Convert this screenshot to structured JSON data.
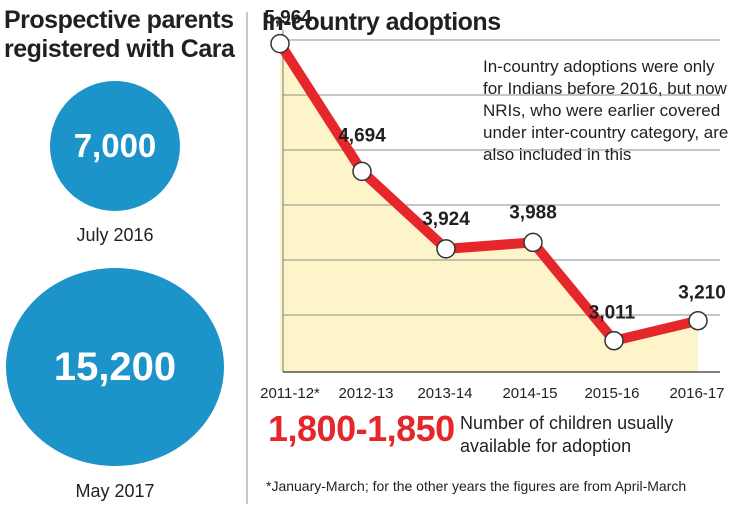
{
  "left_panel": {
    "title": "Prospective parents registered with Cara",
    "items": [
      {
        "value": "7,000",
        "label": "July 2016"
      },
      {
        "value": "15,200",
        "label": "May 2017"
      }
    ],
    "circle_color": "#1c93c9"
  },
  "chart_data": {
    "type": "line",
    "title": "In-country adoptions",
    "categories": [
      "2011-12*",
      "2012-13",
      "2013-14",
      "2014-15",
      "2015-16",
      "2016-17"
    ],
    "values": [
      5964,
      4694,
      3924,
      3988,
      3011,
      3210
    ],
    "value_labels": [
      "5,964",
      "4,694",
      "3,924",
      "3,988",
      "3,011",
      "3,210"
    ],
    "ylim": [
      2700,
      6000
    ],
    "grid": true,
    "line_color": "#e5262a",
    "area_color": "#fdf5c9",
    "note": "In-country adoptions were only for Indians before 2016, but now NRIs, who were earlier covered under inter-country category, are also included in this"
  },
  "summary": {
    "value": "1,800-1,850",
    "label": "Number of children usually available for adoption",
    "color": "#e5262a"
  },
  "footnote": "*January-March;  for the other years the figures are from April-March"
}
